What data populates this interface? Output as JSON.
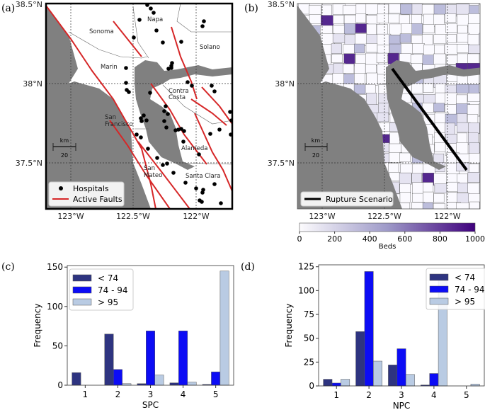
{
  "panels": {
    "a": {
      "label": "(a)",
      "lat_ticks": [
        "38.5°N",
        "38°N",
        "37.5°N"
      ],
      "lon_ticks": [
        "123°W",
        "122.5°W",
        "122°W"
      ],
      "regions": [
        "Sonoma",
        "Napa",
        "Solano",
        "Marin",
        "Contra",
        "Costa",
        "San",
        "Francisco",
        "Alameda",
        "San",
        "Mateo",
        "Santa Clara"
      ],
      "scale_unit": "km",
      "scale_value": "20",
      "legend": [
        {
          "label": "Hospitals",
          "color": "#000000"
        },
        {
          "label": "Active Faults",
          "color": "#d62728"
        }
      ]
    },
    "b": {
      "label": "(b)",
      "lat_ticks": [
        "38.5°N",
        "38°N",
        "37.5°N"
      ],
      "lon_ticks": [
        "123°W",
        "122.5°W",
        "122°W"
      ],
      "scale_unit": "km",
      "scale_value": "20",
      "legend": [
        {
          "label": "Rupture Scenario",
          "color": "#000000"
        }
      ],
      "colorbar": {
        "label": "Beds",
        "ticks": [
          "0",
          "200",
          "400",
          "600",
          "800",
          "1000"
        ],
        "range": [
          0,
          1000
        ],
        "colors": [
          "#fcfbfd",
          "#3f007d"
        ]
      }
    }
  },
  "chart_data": [
    {
      "panel": "(c)",
      "type": "bar",
      "xlabel": "SPC",
      "ylabel": "Frequency",
      "categories": [
        "1",
        "2",
        "3",
        "4",
        "5"
      ],
      "yticks": [
        "0",
        "50",
        "100",
        "150"
      ],
      "ylim": [
        0,
        152
      ],
      "legend_placement": "top-left",
      "series": [
        {
          "name": "< 74",
          "color": "#2e3480",
          "values": [
            16,
            65,
            2,
            3,
            1
          ]
        },
        {
          "name": "74 - 94",
          "color": "#0c0cf5",
          "values": [
            0,
            20,
            69,
            69,
            17
          ]
        },
        {
          "name": "> 95",
          "color": "#b9cbe3",
          "values": [
            0,
            2,
            13,
            4,
            145
          ]
        }
      ]
    },
    {
      "panel": "(d)",
      "type": "bar",
      "xlabel": "NPC",
      "ylabel": "Frequency",
      "categories": [
        "1",
        "2",
        "3",
        "4",
        "5"
      ],
      "yticks": [
        "0",
        "25",
        "50",
        "75",
        "100",
        "125"
      ],
      "ylim": [
        0,
        127
      ],
      "legend_placement": "top-right",
      "series": [
        {
          "name": "< 74",
          "color": "#2e3480",
          "values": [
            7,
            57,
            22,
            1,
            0
          ]
        },
        {
          "name": "74 - 94",
          "color": "#0c0cf5",
          "values": [
            3,
            120,
            39,
            13,
            0
          ]
        },
        {
          "name": "> 95",
          "color": "#b9cbe3",
          "values": [
            7,
            26,
            12,
            117,
            2
          ]
        }
      ]
    }
  ]
}
